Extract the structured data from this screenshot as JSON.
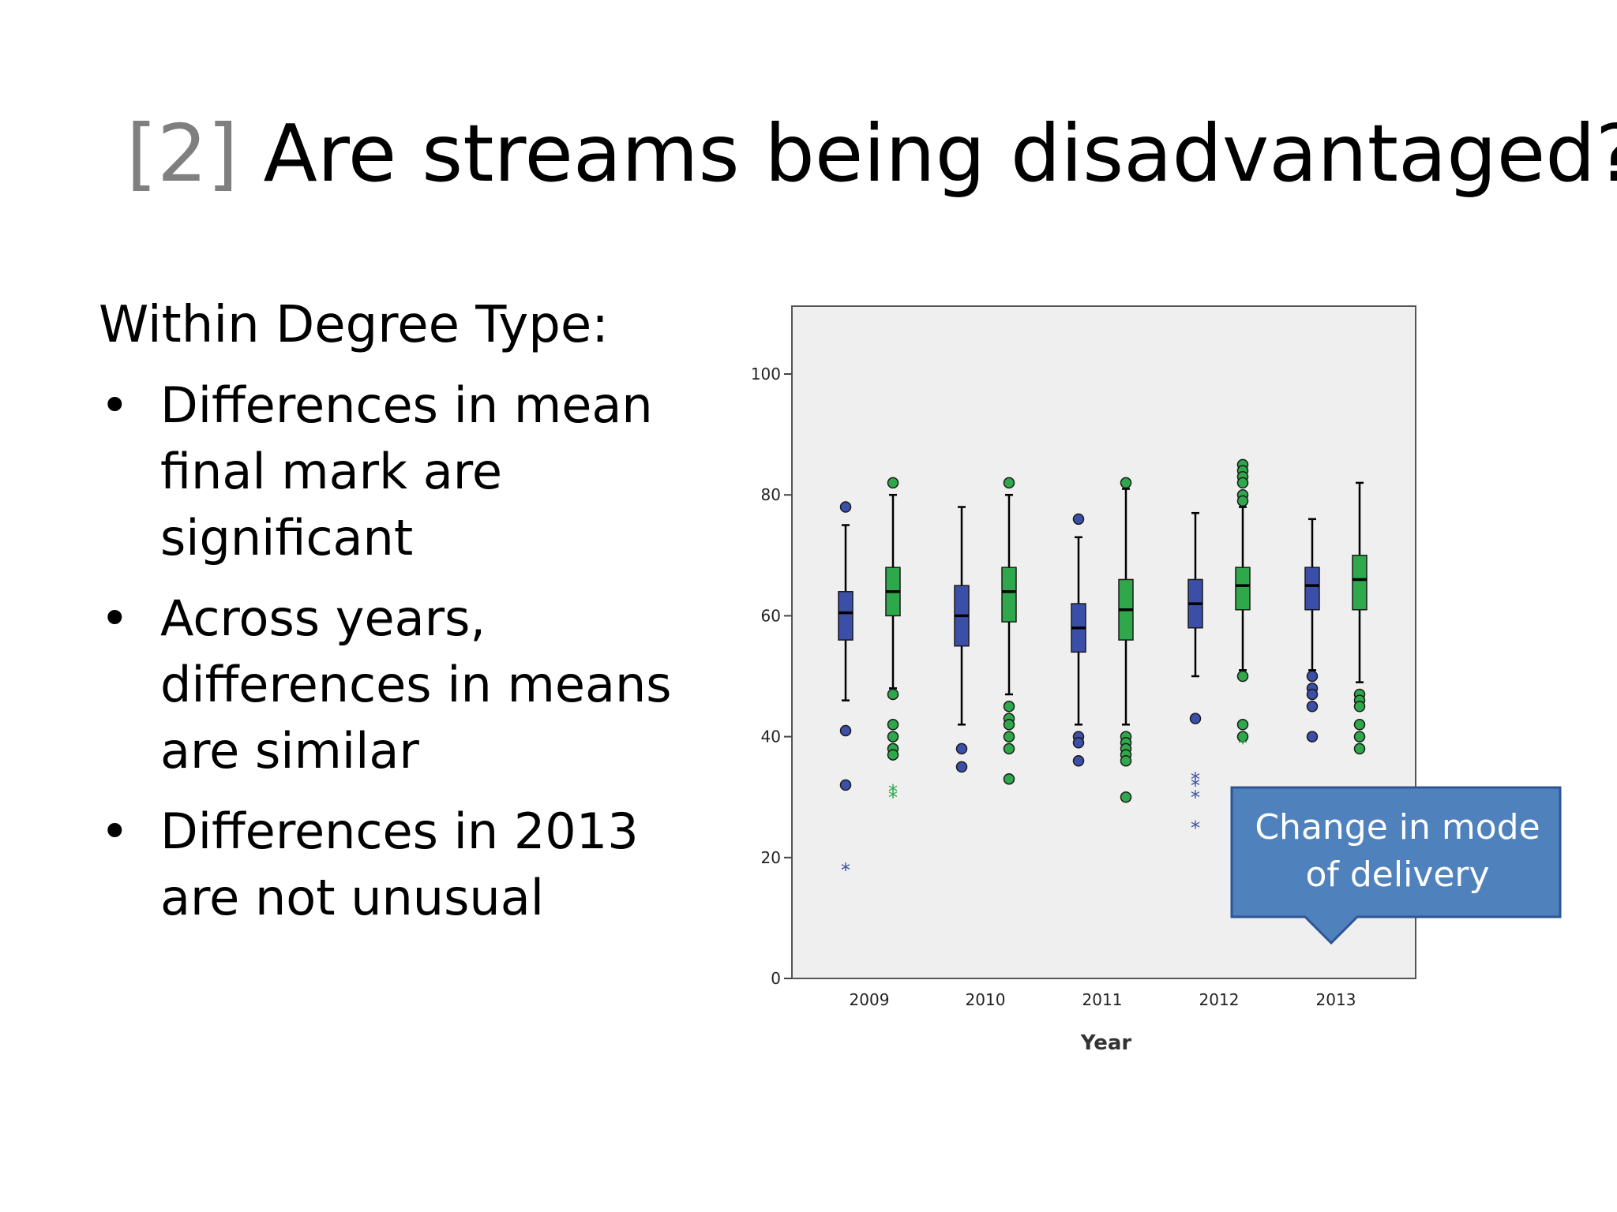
{
  "slide": {
    "title_number": "[2]",
    "title_text": "Are streams being disadvantaged?",
    "lead": "Within Degree Type:",
    "bullets": [
      "Differences in mean final mark are significant",
      "Across years, differences in means are similar",
      "Differences in 2013 are not unusual"
    ],
    "callout": "Change in mode of delivery",
    "bullet_glyph": "•"
  },
  "chart_data": {
    "type": "boxplot",
    "xlabel": "Year",
    "ylabel": "",
    "ylim": [
      0,
      110
    ],
    "yticks": [
      0,
      20,
      40,
      60,
      80,
      100
    ],
    "categories": [
      "2009",
      "2010",
      "2011",
      "2012",
      "2013"
    ],
    "grid": false,
    "colors": {
      "series_1": "#3b4fa8",
      "series_2": "#2ea84a",
      "plot_bg": "#efefef",
      "callout": "#4f81bd"
    },
    "series": [
      {
        "boxes": [
          {
            "category": "2009",
            "whisker_low": 46,
            "q1": 56,
            "median": 60.5,
            "q3": 64,
            "whisker_high": 75,
            "outliers": [
              78,
              41,
              32
            ],
            "extremes": [
              18
            ]
          },
          {
            "category": "2010",
            "whisker_low": 42,
            "q1": 55,
            "median": 60,
            "q3": 65,
            "whisker_high": 78,
            "outliers": [
              38,
              35
            ],
            "extremes": []
          },
          {
            "category": "2011",
            "whisker_low": 42,
            "q1": 54,
            "median": 58,
            "q3": 62,
            "whisker_high": 73,
            "outliers": [
              76,
              40,
              39,
              36
            ],
            "extremes": []
          },
          {
            "category": "2012",
            "whisker_low": 50,
            "q1": 58,
            "median": 62,
            "q3": 66,
            "whisker_high": 77,
            "outliers": [
              43
            ],
            "extremes": [
              33,
              32,
              30,
              25
            ]
          },
          {
            "category": "2013",
            "whisker_low": 51,
            "q1": 61,
            "median": 65,
            "q3": 68,
            "whisker_high": 76,
            "outliers": [
              50,
              48,
              47,
              45,
              40
            ],
            "extremes": []
          }
        ]
      },
      {
        "boxes": [
          {
            "category": "2009",
            "whisker_low": 48,
            "q1": 60,
            "median": 64,
            "q3": 68,
            "whisker_high": 80,
            "outliers": [
              82,
              47,
              42,
              40,
              38,
              37
            ],
            "extremes": [
              31,
              30
            ]
          },
          {
            "category": "2010",
            "whisker_low": 47,
            "q1": 59,
            "median": 64,
            "q3": 68,
            "whisker_high": 80,
            "outliers": [
              82,
              45,
              43,
              42,
              40,
              38,
              33
            ],
            "extremes": []
          },
          {
            "category": "2011",
            "whisker_low": 42,
            "q1": 56,
            "median": 61,
            "q3": 66,
            "whisker_high": 81,
            "outliers": [
              82,
              40,
              39,
              38,
              37,
              36,
              30
            ],
            "extremes": []
          },
          {
            "category": "2012",
            "whisker_low": 51,
            "q1": 61,
            "median": 65,
            "q3": 68,
            "whisker_high": 78,
            "outliers": [
              85,
              84,
              83,
              82,
              80,
              79,
              50,
              42,
              40
            ],
            "extremes": [
              39
            ]
          },
          {
            "category": "2013",
            "whisker_low": 49,
            "q1": 61,
            "median": 66,
            "q3": 70,
            "whisker_high": 82,
            "outliers": [
              47,
              46,
              45,
              42,
              40,
              38
            ],
            "extremes": []
          }
        ]
      }
    ]
  }
}
